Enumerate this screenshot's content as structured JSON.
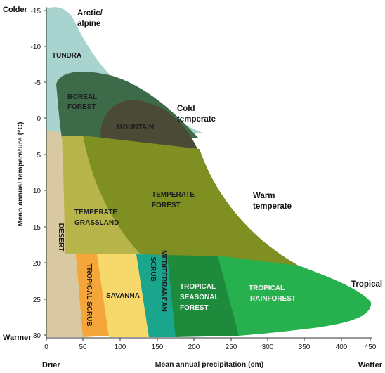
{
  "axes": {
    "y_title": "Mean annual temperature (°C)",
    "x_title": "Mean annual precipitation (cm)",
    "y_ticks": [
      "-15",
      "-10",
      "-5",
      "0",
      "5",
      "10",
      "15",
      "20",
      "25",
      "30"
    ],
    "x_ticks": [
      "0",
      "50",
      "100",
      "150",
      "200",
      "250",
      "300",
      "350",
      "400",
      "450"
    ],
    "y_top_label": "Colder",
    "y_bottom_label": "Warmer",
    "x_left_label": "Drier",
    "x_right_label": "Wetter"
  },
  "zones": {
    "arctic_line1": "Arctic/",
    "arctic_line2": "alpine",
    "cold_line1": "Cold",
    "cold_line2": "temperate",
    "warm_line1": "Warm",
    "warm_line2": "temperate",
    "tropical": "Tropical"
  },
  "biomes": {
    "tundra": "TUNDRA",
    "boreal_line1": "BOREAL",
    "boreal_line2": "FOREST",
    "mountain": "MOUNTAIN",
    "temperate_forest_line1": "TEMPERATE",
    "temperate_forest_line2": "FOREST",
    "temperate_grassland_line1": "TEMPERATE",
    "temperate_grassland_line2": "GRASSLAND",
    "desert": "DESERT",
    "tropical_scrub": "TROPICAL SCRUB",
    "savanna": "SAVANNA",
    "mediterranean_line1": "MEDITERRANEAN",
    "mediterranean_line2": "SCRUB",
    "tropical_seasonal_line1": "TROPICAL",
    "tropical_seasonal_line2": "SEASONAL",
    "tropical_seasonal_line3": "FOREST",
    "tropical_rainforest_line1": "TROPICAL",
    "tropical_rainforest_line2": "RAINFOREST"
  },
  "colors": {
    "tundra": "#a9d3cf",
    "boreal": "#3d6b4a",
    "mountain": "#4b4a36",
    "temperate_forest": "#7f8f22",
    "temperate_grassland": "#b7b54a",
    "desert": "#d9c9a3",
    "tropical_scrub": "#f4a63a",
    "savanna": "#f7d86a",
    "mediterranean": "#19a68c",
    "tropical_seasonal": "#1e8a3c",
    "tropical_rainforest": "#27b04e"
  }
}
